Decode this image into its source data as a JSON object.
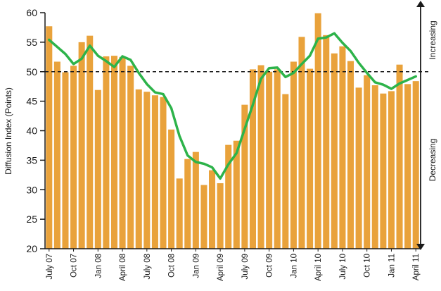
{
  "chart_data": {
    "type": "bar",
    "ylabel": "Diffusion Index (Points)",
    "ylim": [
      20,
      60
    ],
    "yticks": [
      20,
      25,
      30,
      35,
      40,
      45,
      50,
      55,
      60
    ],
    "reference_line": 50,
    "x_tick_labels": [
      {
        "index": 0,
        "label": "July 07"
      },
      {
        "index": 3,
        "label": "Oct 07"
      },
      {
        "index": 6,
        "label": "Jan 08"
      },
      {
        "index": 9,
        "label": "April 08"
      },
      {
        "index": 12,
        "label": "July 08"
      },
      {
        "index": 15,
        "label": "Oct 08"
      },
      {
        "index": 18,
        "label": "Jan 09"
      },
      {
        "index": 21,
        "label": "April 09"
      },
      {
        "index": 24,
        "label": "July 09"
      },
      {
        "index": 27,
        "label": "Oct 09"
      },
      {
        "index": 30,
        "label": "Jan 10"
      },
      {
        "index": 33,
        "label": "April 10"
      },
      {
        "index": 36,
        "label": "July 10"
      },
      {
        "index": 39,
        "label": "Oct 10"
      },
      {
        "index": 42,
        "label": "Jan 11"
      },
      {
        "index": 45,
        "label": "April 11"
      }
    ],
    "series": [
      {
        "type": "bar",
        "color": "#E9A23B",
        "values": [
          57.7,
          51.7,
          49.9,
          51.0,
          55.0,
          56.1,
          46.9,
          52.6,
          52.7,
          52.5,
          51.0,
          47.0,
          46.6,
          46.0,
          45.7,
          40.2,
          31.9,
          35.2,
          36.4,
          30.8,
          33.3,
          31.1,
          37.6,
          38.3,
          44.4,
          50.4,
          51.1,
          50.0,
          50.4,
          46.2,
          51.7,
          55.9,
          50.5,
          59.9,
          56.2,
          53.1,
          54.3,
          51.8,
          47.3,
          49.4,
          47.7,
          46.3,
          46.7,
          51.2,
          47.9,
          48.4
        ]
      },
      {
        "type": "line",
        "color": "#2DB34A",
        "values": [
          55.4,
          54.2,
          53.0,
          51.3,
          52.2,
          54.4,
          52.7,
          51.8,
          50.8,
          52.6,
          52.0,
          49.8,
          47.9,
          46.5,
          46.2,
          43.8,
          39.1,
          35.8,
          34.7,
          34.4,
          33.8,
          31.9,
          34.3,
          36.2,
          40.3,
          44.4,
          48.8,
          50.6,
          50.7,
          49.1,
          49.8,
          51.3,
          52.7,
          55.6,
          55.8,
          56.5,
          54.9,
          53.5,
          51.5,
          49.8,
          48.2,
          47.8,
          47.1,
          48.0,
          48.6,
          49.2
        ]
      }
    ],
    "side_labels": {
      "upper": "Increasing",
      "lower": "Decreasing"
    }
  }
}
